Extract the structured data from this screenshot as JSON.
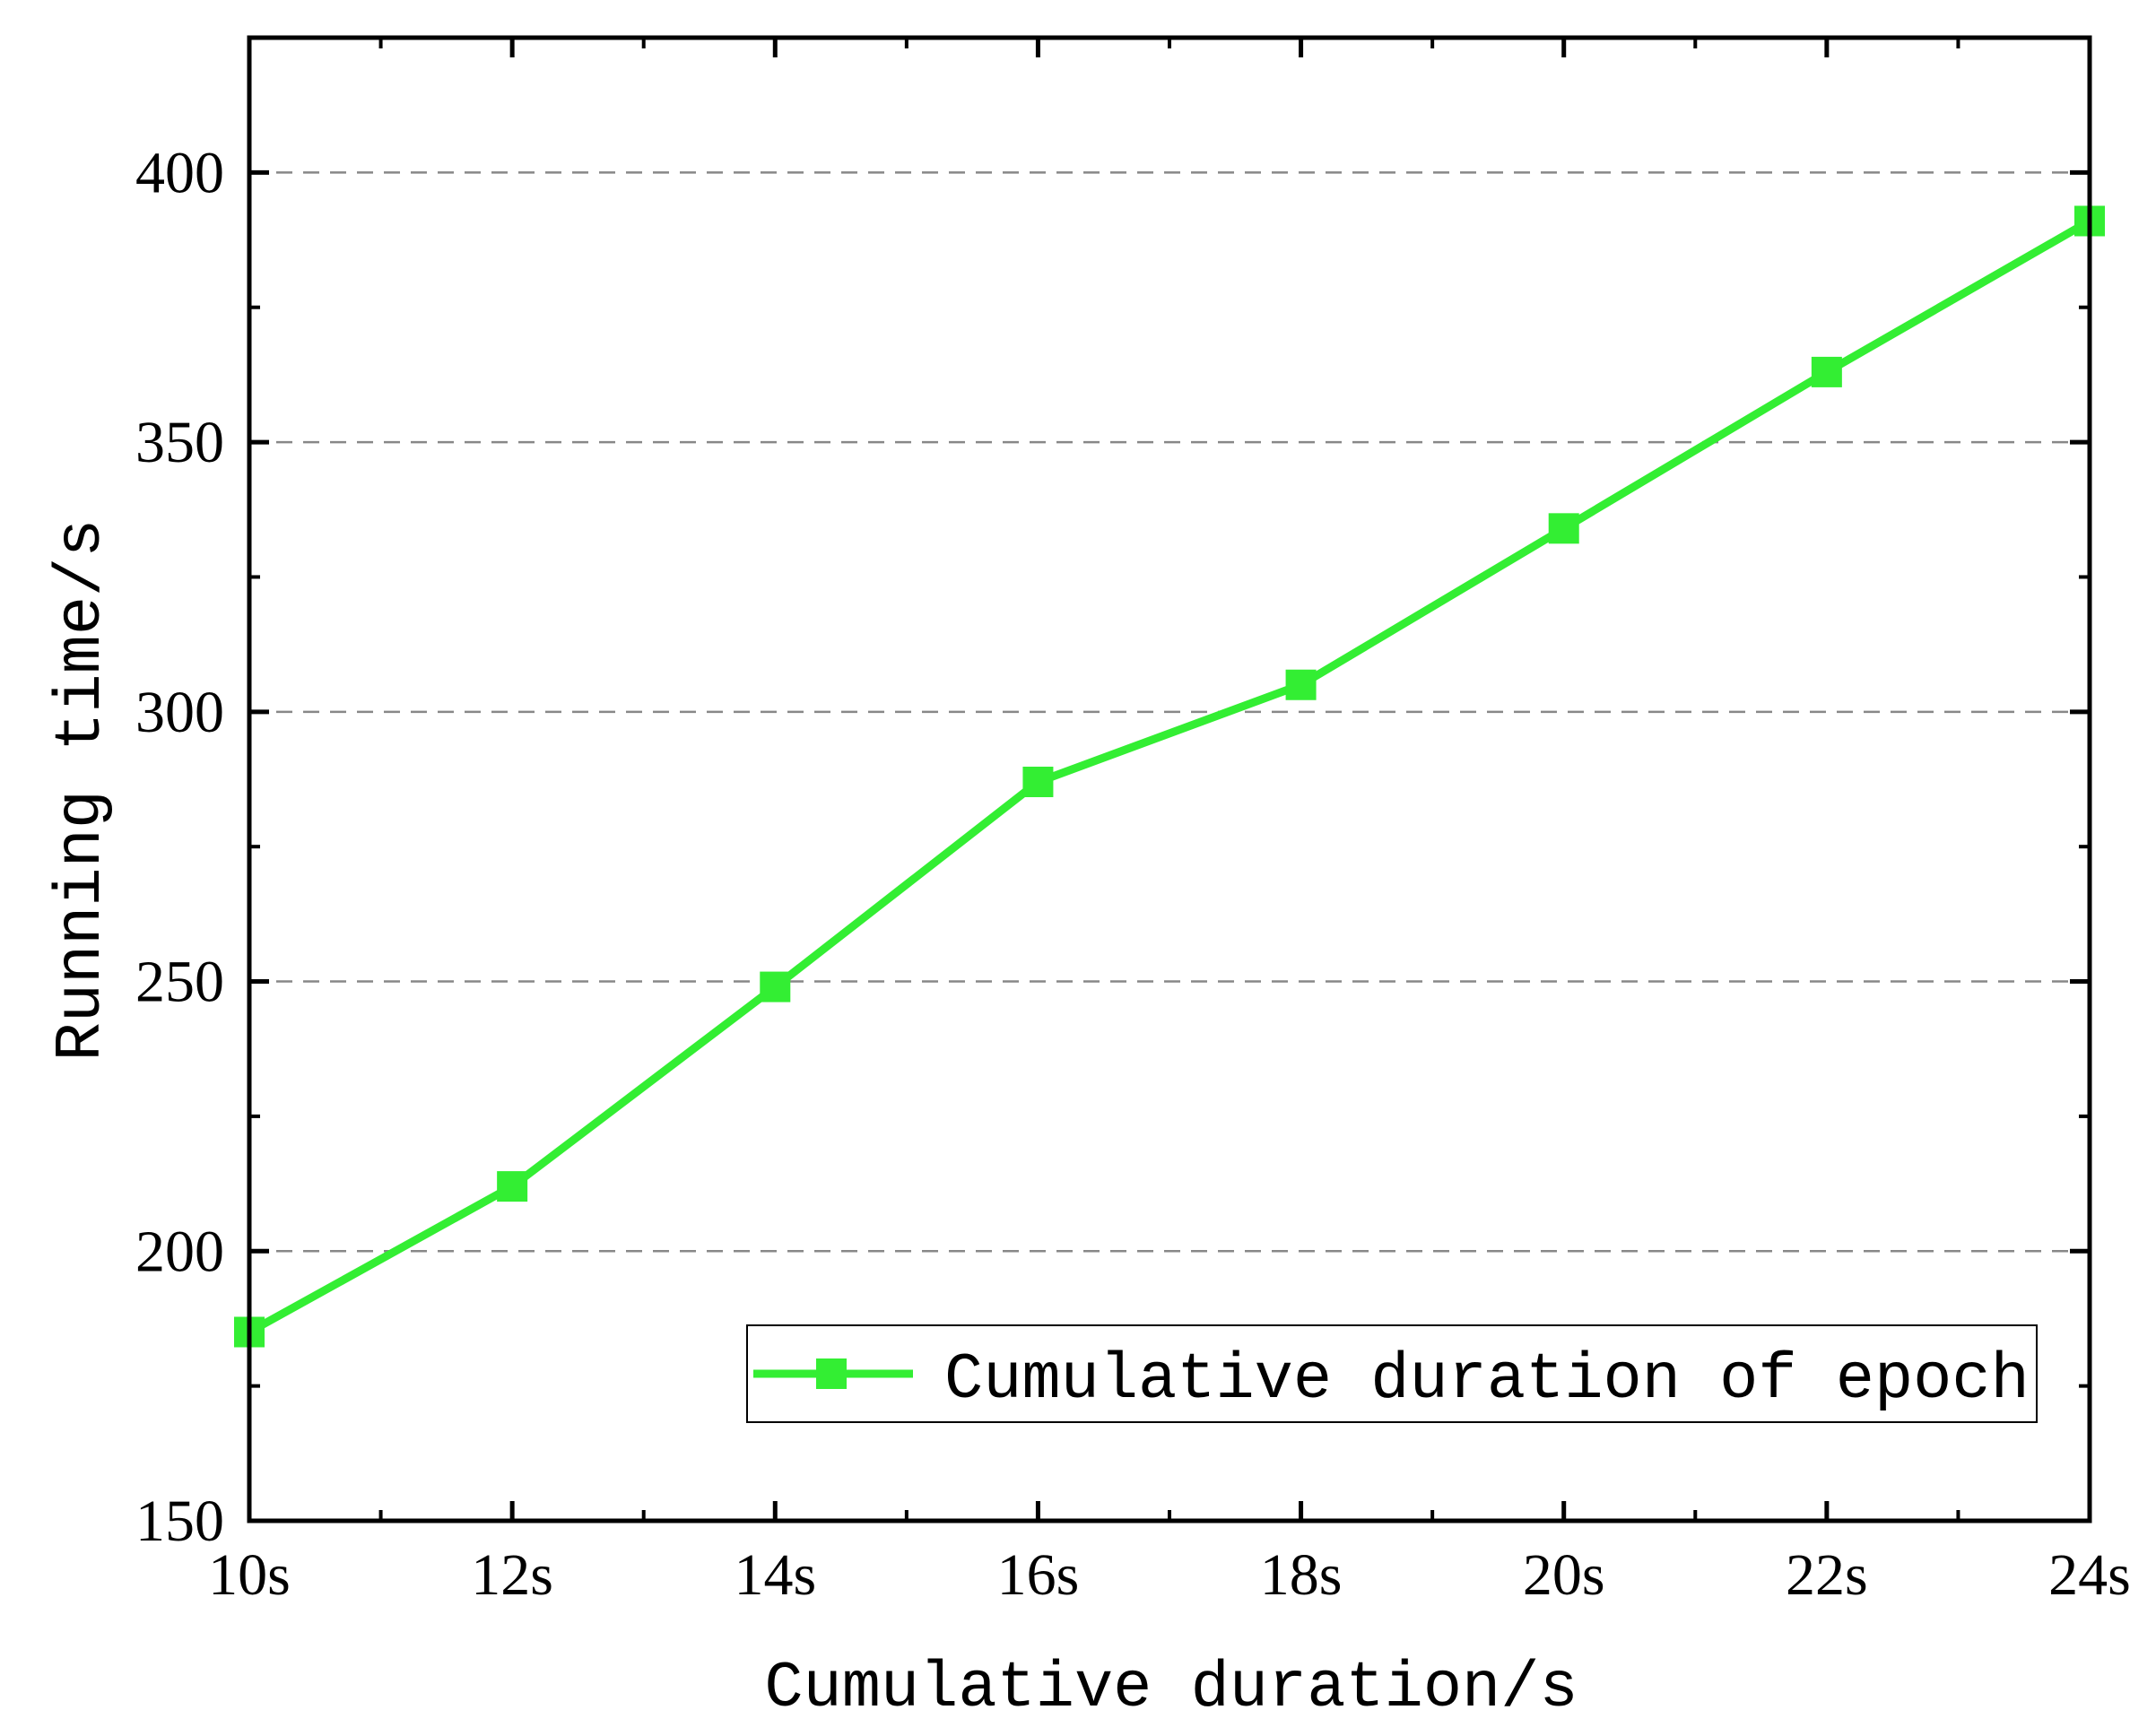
{
  "chart_data": {
    "type": "line",
    "title": "",
    "xlabel": "Cumulative duration/s",
    "ylabel": "Running time/s",
    "x": [
      10,
      12,
      14,
      16,
      18,
      20,
      22,
      24
    ],
    "x_tick_labels": [
      "10s",
      "12s",
      "14s",
      "16s",
      "18s",
      "20s",
      "22s",
      "24s"
    ],
    "y_ticks": [
      150,
      200,
      250,
      300,
      350,
      400
    ],
    "xlim": [
      10,
      24
    ],
    "ylim": [
      150,
      425
    ],
    "grid": "horizontal dashed",
    "legend_position": "bottom-right",
    "series": [
      {
        "name": "Cumulative duration of epoch",
        "color": "#33ee33",
        "marker": "square",
        "values": [
          185,
          212,
          249,
          287,
          305,
          334,
          363,
          391
        ]
      }
    ]
  }
}
